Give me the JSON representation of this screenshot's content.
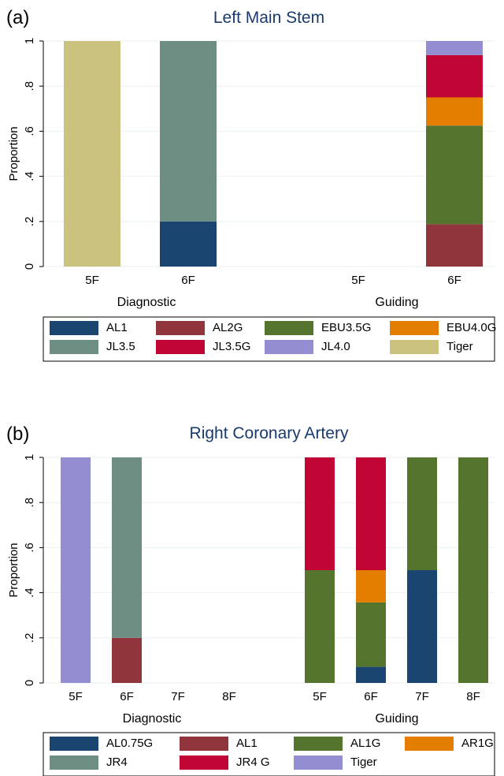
{
  "chart_data": [
    {
      "type": "bar",
      "stacked": true,
      "panel_label": "(a)",
      "title": "Left Main Stem",
      "ylabel": "Proportion",
      "ylim": [
        0,
        1
      ],
      "yticks": [
        "0",
        ".2",
        ".4",
        ".6",
        ".8",
        "1"
      ],
      "ytick_values": [
        0,
        0.2,
        0.4,
        0.6,
        0.8,
        1
      ],
      "groups": [
        {
          "label": "Diagnostic",
          "categories": [
            "5F",
            "6F"
          ]
        },
        {
          "label": "Guiding",
          "categories": [
            "5F",
            "6F"
          ]
        }
      ],
      "series": [
        {
          "name": "AL1",
          "color": "#1a4570",
          "values": [
            0,
            0.2,
            0,
            0
          ]
        },
        {
          "name": "AL2G",
          "color": "#90353b",
          "values": [
            0,
            0,
            0,
            0.1875
          ]
        },
        {
          "name": "EBU3.5G",
          "color": "#55752f",
          "values": [
            0,
            0,
            0,
            0.4375
          ]
        },
        {
          "name": "EBU4.0G",
          "color": "#e37e00",
          "values": [
            0,
            0,
            0,
            0.125
          ]
        },
        {
          "name": "JL3.5",
          "color": "#6e8e84",
          "values": [
            0,
            0.8,
            0,
            0
          ]
        },
        {
          "name": "JL3.5G",
          "color": "#c10534",
          "values": [
            0,
            0,
            0,
            0.1875
          ]
        },
        {
          "name": "JL4.0",
          "color": "#938dd2",
          "values": [
            0,
            0,
            0,
            0.0625
          ]
        },
        {
          "name": "Tiger",
          "color": "#cac27e",
          "values": [
            1,
            0,
            0,
            0
          ]
        }
      ],
      "legend_placement": "bottom",
      "grid": true
    },
    {
      "type": "bar",
      "stacked": true,
      "panel_label": "(b)",
      "title": "Right Coronary Artery",
      "ylabel": "Proportion",
      "ylim": [
        0,
        1
      ],
      "yticks": [
        "0",
        ".2",
        ".4",
        ".6",
        ".8",
        "1"
      ],
      "ytick_values": [
        0,
        0.2,
        0.4,
        0.6,
        0.8,
        1
      ],
      "groups": [
        {
          "label": "Diagnostic",
          "categories": [
            "5F",
            "6F",
            "7F",
            "8F"
          ]
        },
        {
          "label": "Guiding",
          "categories": [
            "5F",
            "6F",
            "7F",
            "8F"
          ]
        }
      ],
      "series": [
        {
          "name": "AL0.75G",
          "color": "#1a4570",
          "values": [
            0,
            0,
            0,
            0,
            0,
            0.0714,
            0.5,
            0
          ]
        },
        {
          "name": "AL1",
          "color": "#90353b",
          "values": [
            0,
            0.2,
            0,
            0,
            0,
            0,
            0,
            0
          ]
        },
        {
          "name": "AL1G",
          "color": "#55752f",
          "values": [
            0,
            0,
            0,
            0,
            0.5,
            0.2857,
            0.5,
            1
          ]
        },
        {
          "name": "AR1G",
          "color": "#e37e00",
          "values": [
            0,
            0,
            0,
            0,
            0,
            0.1429,
            0,
            0
          ]
        },
        {
          "name": "JR4",
          "color": "#6e8e84",
          "values": [
            0,
            0.8,
            0,
            0,
            0,
            0,
            0,
            0
          ]
        },
        {
          "name": "JR4 G",
          "color": "#c10534",
          "values": [
            0,
            0,
            0,
            0,
            0.5,
            0.5,
            0,
            0
          ]
        },
        {
          "name": "Tiger",
          "color": "#938dd2",
          "values": [
            1,
            0,
            0,
            0,
            0,
            0,
            0,
            0
          ]
        }
      ],
      "legend_placement": "bottom",
      "grid": true
    }
  ]
}
